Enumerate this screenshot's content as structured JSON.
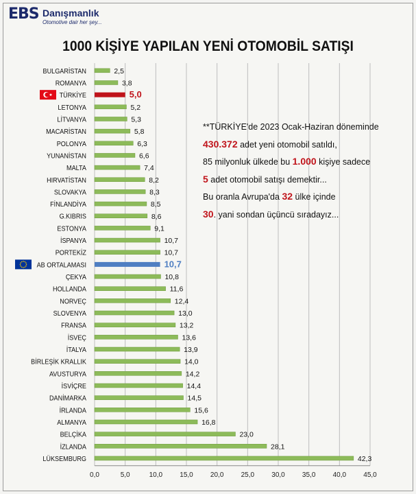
{
  "logo": {
    "mark": "EBS",
    "name": "Danışmanlık",
    "tagline": "Otomotive dair her şey..."
  },
  "title": "1000 KİŞİYE YAPILAN YENİ OTOMOBİL SATIŞI",
  "note": {
    "line1": "**TÜRKİYE'de 2023 Ocak-Haziran döneminde",
    "line2_hl": "430.372",
    "line2": " adet yeni otomobil satıldı,",
    "line3a": "85 milyonluk ülkede bu ",
    "line3_hl": "1.000",
    "line3b": " kişiye sadece",
    "line4_hl": "5",
    "line4": " adet otomobil satışı demektir...",
    "line5a": "Bu oranla Avrupa'da ",
    "line5_hl": "32",
    "line5b": " ülke içinde",
    "line6_hl": "30",
    "line6": ". yani sondan üçüncü sıradayız..."
  },
  "colors": {
    "bar": "#8dbb5a",
    "bar_highlight_tr": "#c0141b",
    "bar_highlight_eu": "#4f7fc2",
    "grid": "#bdbdbd",
    "flag_tr": "#e30a17",
    "flag_eu": "#003399"
  },
  "chart_data": {
    "type": "bar",
    "orientation": "horizontal",
    "title": "1000 KİŞİYE YAPILAN YENİ OTOMOBİL SATIŞI",
    "xlim": [
      0,
      45
    ],
    "x_ticks": [
      "0,0",
      "5,0",
      "10,0",
      "15,0",
      "20,0",
      "25,0",
      "30,0",
      "35,0",
      "40,0",
      "45,0"
    ],
    "grid": "vertical",
    "categories": [
      "BULGARİSTAN",
      "ROMANYA",
      "TÜRKİYE",
      "LETONYA",
      "LİTVANYA",
      "MACARİSTAN",
      "POLONYA",
      "YUNANİSTAN",
      "MALTA",
      "HIRVATİSTAN",
      "SLOVAKYA",
      "FİNLANDİYA",
      "G.KIBRIS",
      "ESTONYA",
      "İSPANYA",
      "PORTEKİZ",
      "AB ORTALAMASI",
      "ÇEKYA",
      "HOLLANDA",
      "NORVEÇ",
      "SLOVENYA",
      "FRANSA",
      "İSVEÇ",
      "İTALYA",
      "BİRLEŞİK KRALLIK",
      "AVUSTURYA",
      "İSVİÇRE",
      "DANİMARKA",
      "İRLANDA",
      "ALMANYA",
      "BELÇİKA",
      "İZLANDA",
      "LÜKSEMBURG"
    ],
    "values": [
      2.5,
      3.8,
      5.0,
      5.2,
      5.3,
      5.8,
      6.3,
      6.6,
      7.4,
      8.2,
      8.3,
      8.5,
      8.6,
      9.1,
      10.7,
      10.7,
      10.7,
      10.8,
      11.6,
      12.4,
      13.0,
      13.2,
      13.6,
      13.9,
      14.0,
      14.2,
      14.4,
      14.5,
      15.6,
      16.8,
      23.0,
      28.1,
      42.3
    ],
    "labels": [
      "2,5",
      "3,8",
      "5,0",
      "5,2",
      "5,3",
      "5,8",
      "6,3",
      "6,6",
      "7,4",
      "8,2",
      "8,3",
      "8,5",
      "8,6",
      "9,1",
      "10,7",
      "10,7",
      "10,7",
      "10,8",
      "11,6",
      "12,4",
      "13,0",
      "13,2",
      "13,6",
      "13,9",
      "14,0",
      "14,2",
      "14,4",
      "14,5",
      "15,6",
      "16,8",
      "23,0",
      "28,1",
      "42,3"
    ],
    "highlight": {
      "TÜRKİYE": "tr",
      "AB ORTALAMASI": "eu"
    }
  }
}
